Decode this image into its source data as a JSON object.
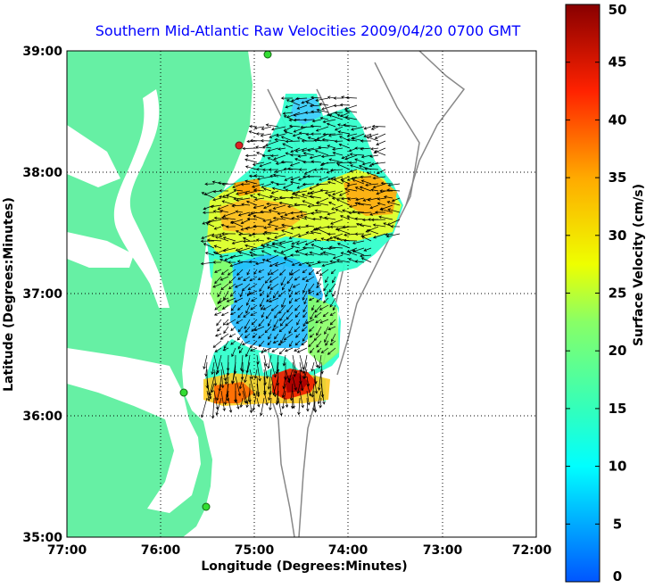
{
  "chart_data": {
    "type": "heatmap",
    "title": "Southern Mid-Atlantic Raw Velocities 2009/04/20 0700 GMT",
    "xlabel": "Longitude (Degrees:Minutes)",
    "ylabel": "Latitude (Degrees:Minutes)",
    "x_ticks": [
      "77:00",
      "76:00",
      "75:00",
      "74:00",
      "73:00",
      "72:00"
    ],
    "y_ticks": [
      "39:00",
      "38:00",
      "37:00",
      "36:00",
      "35:00"
    ],
    "xlim": [
      -77,
      -72
    ],
    "ylim": [
      35,
      39
    ],
    "grid": true,
    "colorbar": {
      "label": "Surface Velocity (cm/s)",
      "range": [
        0,
        50
      ],
      "ticks": [
        "0",
        "5",
        "10",
        "15",
        "20",
        "25",
        "30",
        "35",
        "40",
        "45",
        "50"
      ]
    },
    "colors": {
      "land": "#66f0a4",
      "bathymetry": "#888888",
      "station": "#33dd33",
      "station_alt": "#dd2222",
      "arrows": "#000000"
    }
  }
}
